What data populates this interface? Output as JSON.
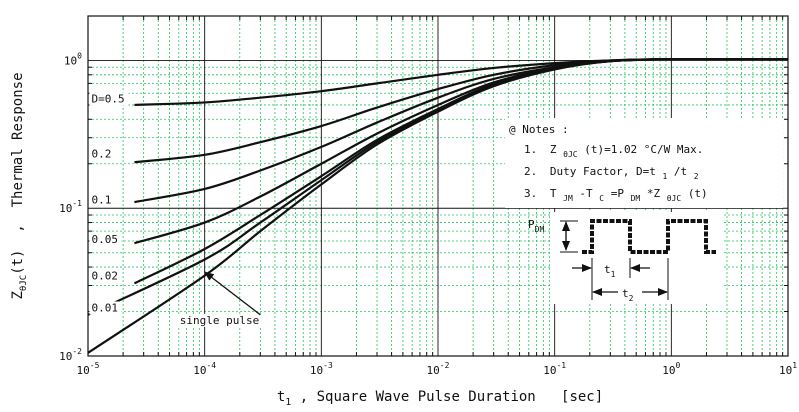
{
  "chart_data": {
    "type": "line",
    "xscale": "log",
    "yscale": "log",
    "xlim": [
      1e-05,
      10
    ],
    "ylim": [
      0.01,
      2
    ],
    "grid": true,
    "xlabel": {
      "main": "t",
      "sub": "1",
      "rest": " , Square Wave Pulse Duration   [sec]"
    },
    "ylabel": {
      "main": "Z",
      "sub": "θJC",
      "rest": "(t)  ,  Thermal Response"
    },
    "x_ticks": [
      {
        "value": 1e-05,
        "base": "10",
        "exp": "-5"
      },
      {
        "value": 0.0001,
        "base": "10",
        "exp": "-4"
      },
      {
        "value": 0.001,
        "base": "10",
        "exp": "-3"
      },
      {
        "value": 0.01,
        "base": "10",
        "exp": "-2"
      },
      {
        "value": 0.1,
        "base": "10",
        "exp": "-1"
      },
      {
        "value": 1,
        "base": "10",
        "exp": "0"
      },
      {
        "value": 10,
        "base": "10",
        "exp": "1"
      }
    ],
    "y_ticks": [
      {
        "value": 0.01,
        "base": "10",
        "exp": "-2"
      },
      {
        "value": 0.1,
        "base": "10",
        "exp": "-1"
      },
      {
        "value": 1,
        "base": "10",
        "exp": "0"
      }
    ],
    "series": [
      {
        "name": "D=0.5",
        "label_x": 1.05e-05,
        "label_y": 0.52,
        "points": [
          [
            2.5e-05,
            0.5
          ],
          [
            0.0001,
            0.52
          ],
          [
            0.0003,
            0.56
          ],
          [
            0.001,
            0.62
          ],
          [
            0.003,
            0.7
          ],
          [
            0.01,
            0.8
          ],
          [
            0.03,
            0.89
          ],
          [
            0.1,
            0.96
          ],
          [
            0.3,
            1.0
          ],
          [
            1,
            1.02
          ],
          [
            3,
            1.02
          ],
          [
            10,
            1.02
          ]
        ]
      },
      {
        "name": "0.2",
        "label_x": 1.05e-05,
        "label_y": 0.22,
        "points": [
          [
            2.5e-05,
            0.205
          ],
          [
            0.0001,
            0.23
          ],
          [
            0.0003,
            0.28
          ],
          [
            0.001,
            0.36
          ],
          [
            0.003,
            0.48
          ],
          [
            0.01,
            0.64
          ],
          [
            0.03,
            0.8
          ],
          [
            0.1,
            0.93
          ],
          [
            0.3,
            1.0
          ],
          [
            1,
            1.02
          ],
          [
            10,
            1.02
          ]
        ]
      },
      {
        "name": "0.1",
        "label_x": 1.05e-05,
        "label_y": 0.108,
        "points": [
          [
            2.5e-05,
            0.11
          ],
          [
            0.0001,
            0.135
          ],
          [
            0.0003,
            0.18
          ],
          [
            0.001,
            0.26
          ],
          [
            0.003,
            0.38
          ],
          [
            0.01,
            0.56
          ],
          [
            0.03,
            0.75
          ],
          [
            0.1,
            0.9
          ],
          [
            0.3,
            0.99
          ],
          [
            1,
            1.02
          ],
          [
            10,
            1.02
          ]
        ]
      },
      {
        "name": "0.05",
        "label_x": 1.05e-05,
        "label_y": 0.058,
        "points": [
          [
            2.5e-05,
            0.058
          ],
          [
            0.0001,
            0.08
          ],
          [
            0.0003,
            0.12
          ],
          [
            0.001,
            0.2
          ],
          [
            0.003,
            0.32
          ],
          [
            0.01,
            0.5
          ],
          [
            0.03,
            0.71
          ],
          [
            0.1,
            0.89
          ],
          [
            0.3,
            0.99
          ],
          [
            1,
            1.02
          ],
          [
            10,
            1.02
          ]
        ]
      },
      {
        "name": "0.02",
        "label_x": 1.05e-05,
        "label_y": 0.033,
        "points": [
          [
            2.5e-05,
            0.031
          ],
          [
            0.0001,
            0.053
          ],
          [
            0.0003,
            0.09
          ],
          [
            0.001,
            0.165
          ],
          [
            0.003,
            0.29
          ],
          [
            0.01,
            0.47
          ],
          [
            0.03,
            0.69
          ],
          [
            0.1,
            0.88
          ],
          [
            0.3,
            0.99
          ],
          [
            1,
            1.02
          ],
          [
            10,
            1.02
          ]
        ]
      },
      {
        "name": "0.01",
        "label_x": 1.05e-05,
        "label_y": 0.02,
        "points": [
          [
            1e-05,
            0.019
          ],
          [
            0.0001,
            0.045
          ],
          [
            0.0003,
            0.08
          ],
          [
            0.001,
            0.155
          ],
          [
            0.003,
            0.28
          ],
          [
            0.01,
            0.46
          ],
          [
            0.03,
            0.68
          ],
          [
            0.1,
            0.88
          ],
          [
            0.3,
            0.99
          ],
          [
            1,
            1.02
          ],
          [
            10,
            1.02
          ]
        ]
      },
      {
        "name": "single pulse",
        "label_x": 6e-05,
        "label_y": 0.0165,
        "points": [
          [
            1e-05,
            0.0105
          ],
          [
            0.0001,
            0.035
          ],
          [
            0.0003,
            0.07
          ],
          [
            0.001,
            0.145
          ],
          [
            0.003,
            0.27
          ],
          [
            0.01,
            0.45
          ],
          [
            0.03,
            0.67
          ],
          [
            0.1,
            0.87
          ],
          [
            0.3,
            0.99
          ],
          [
            1,
            1.02
          ],
          [
            10,
            1.02
          ]
        ]
      }
    ],
    "single_pulse_arrow": {
      "from": [
        0.0003,
        0.019
      ],
      "to": [
        0.0001,
        0.037
      ]
    },
    "notes": {
      "header": "@ Notes :",
      "line1": {
        "num": "1.",
        "z": "Z",
        "sub": "θJC",
        "rest": "(t)=1.02 °C/W Max."
      },
      "line2": {
        "num": "2.",
        "text": "Duty Factor, D=t",
        "s1": "1",
        "slash": "/t",
        "s2": "2"
      },
      "line3": {
        "num": "3.",
        "t1": "T",
        "s1": "JM",
        "minus": "-T",
        "s2": "C",
        "eq": "=P",
        "s3": "DM",
        "mul": "*Z",
        "s4": "θJC",
        "tail": "(t)"
      }
    },
    "pulse_diagram": {
      "pdm_main": "P",
      "pdm_sub": "DM",
      "t1_main": "t",
      "t1_sub": "1",
      "t2_main": "t",
      "t2_sub": "2"
    }
  }
}
